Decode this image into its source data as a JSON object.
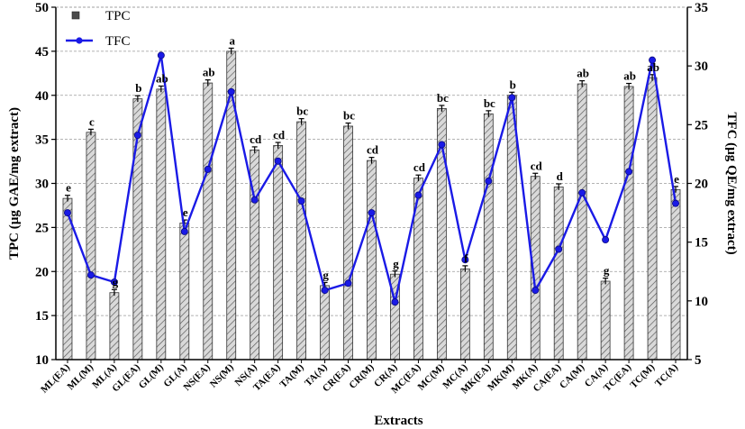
{
  "chart_data": {
    "type": "bar+line",
    "xlabel": "Extracts",
    "ylabel_left": "TPC (µg GAE/mg extract)",
    "ylabel_right": "TFC (µg QE/mg extract)",
    "ylim_left": [
      10,
      50
    ],
    "ylim_right": [
      5,
      35
    ],
    "yticks_left": [
      "10",
      "15",
      "20",
      "25",
      "30",
      "35",
      "40",
      "45",
      "50"
    ],
    "yticks_right": [
      "5",
      "10",
      "15",
      "20",
      "25",
      "30",
      "35"
    ],
    "legend_position": "top-left",
    "categories": [
      "ML(EA)",
      "ML(M)",
      "ML(A)",
      "GL(EA)",
      "GL(M)",
      "GL(A)",
      "NS(EA)",
      "NS(M)",
      "NS(A)",
      "TA(EA)",
      "TA(M)",
      "TA(A)",
      "CR(EA)",
      "CR(M)",
      "CR(A)",
      "MC(EA)",
      "MC(M)",
      "MC(A)",
      "MK(EA)",
      "MK(M)",
      "MK(A)",
      "CA(EA)",
      "CA(M)",
      "CA(A)",
      "TC(EA)",
      "TC(M)",
      "TC(A)"
    ],
    "series": [
      {
        "name": "TPC",
        "kind": "bar",
        "axis": "left",
        "values": [
          28.3,
          35.8,
          17.6,
          39.6,
          40.7,
          25.5,
          41.4,
          45.0,
          33.8,
          34.3,
          37.0,
          18.4,
          36.5,
          32.6,
          19.7,
          30.6,
          38.5,
          20.3,
          37.9,
          40.0,
          30.8,
          29.6,
          41.3,
          18.9,
          41.0,
          42.0,
          29.3
        ],
        "labels": [
          "e",
          "c",
          "g",
          "b",
          "ab",
          "e",
          "ab",
          "a",
          "cd",
          "cd",
          "bc",
          "g",
          "bc",
          "cd",
          "g",
          "cd",
          "bc",
          "f",
          "bc",
          "b",
          "cd",
          "d",
          "ab",
          "g",
          "ab",
          "ab",
          "e"
        ]
      },
      {
        "name": "TFC",
        "kind": "line",
        "axis": "right",
        "values": [
          17.5,
          12.2,
          11.6,
          24.1,
          30.9,
          15.9,
          21.2,
          27.8,
          18.6,
          21.9,
          18.5,
          10.9,
          11.5,
          17.5,
          9.9,
          19.0,
          23.3,
          13.5,
          20.2,
          27.3,
          10.9,
          14.4,
          19.2,
          15.2,
          21.0,
          30.5,
          18.3
        ]
      }
    ],
    "colors": {
      "bar_fill": "#c8c8c8",
      "bar_hatch": "#5a5a5a",
      "line": "#1a1ae6",
      "marker": "#1a1ae6",
      "grid": "#9a9a9a"
    }
  }
}
